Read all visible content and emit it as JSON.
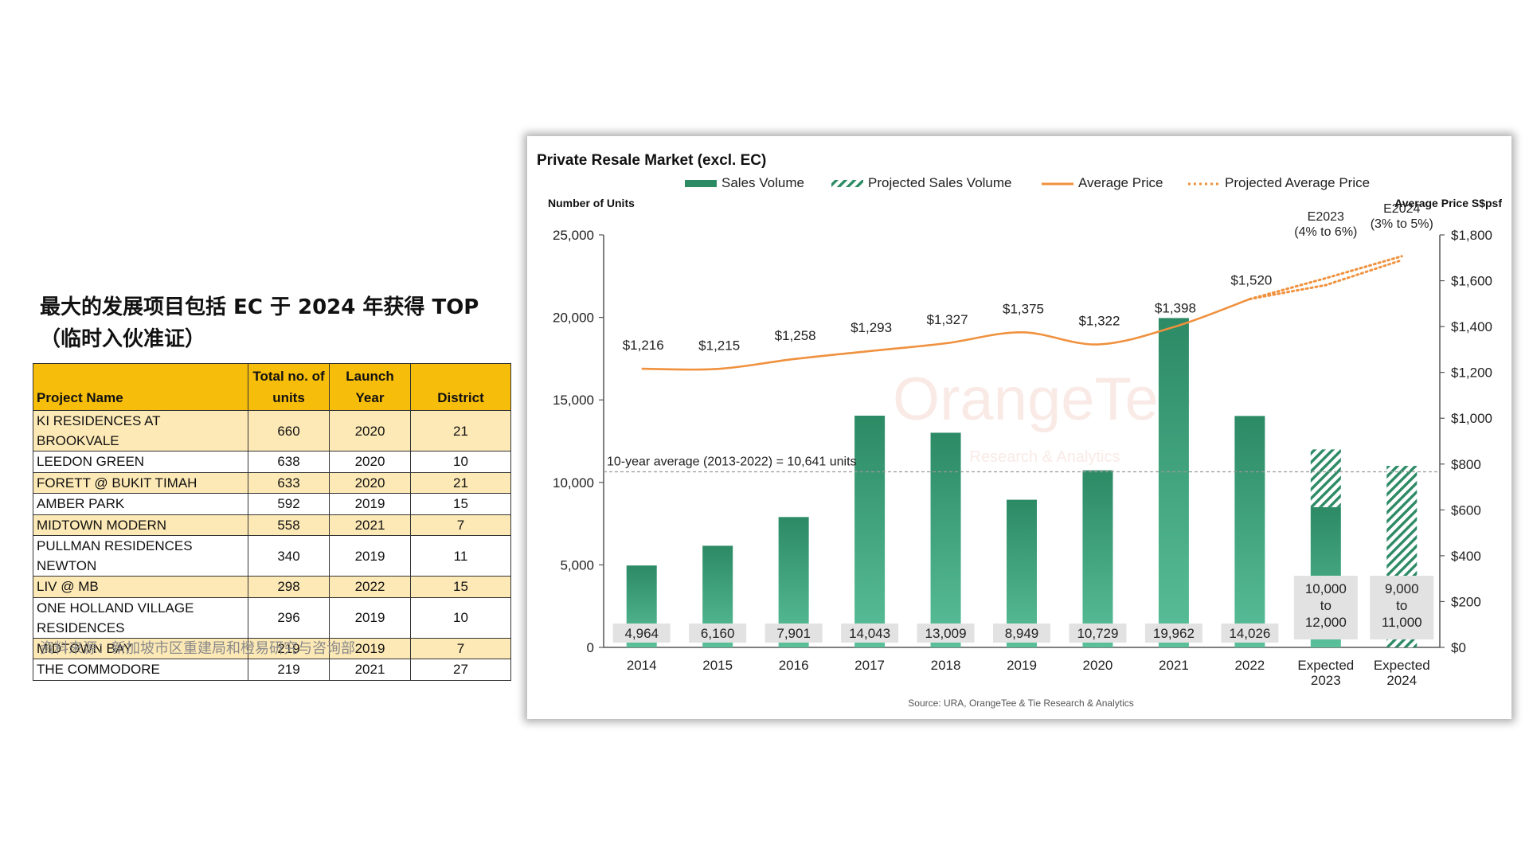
{
  "heading": "最大的发展项目包括 EC 于 2024 年获得 TOP（临时入伙准证）",
  "table": {
    "headers": [
      "Project Name",
      "Total no. of units",
      "Launch Year",
      "District"
    ],
    "rows": [
      [
        "KI RESIDENCES AT BROOKVALE",
        "660",
        "2020",
        "21"
      ],
      [
        "LEEDON GREEN",
        "638",
        "2020",
        "10"
      ],
      [
        "FORETT @ BUKIT TIMAH",
        "633",
        "2020",
        "21"
      ],
      [
        "AMBER PARK",
        "592",
        "2019",
        "15"
      ],
      [
        "MIDTOWN MODERN",
        "558",
        "2021",
        "7"
      ],
      [
        "PULLMAN RESIDENCES NEWTON",
        "340",
        "2019",
        "11"
      ],
      [
        "LIV @ MB",
        "298",
        "2022",
        "15"
      ],
      [
        "ONE HOLLAND VILLAGE RESIDENCES",
        "296",
        "2019",
        "10"
      ],
      [
        "MIDTOWN BAY",
        "219",
        "2019",
        "7"
      ],
      [
        "THE COMMODORE",
        "219",
        "2021",
        "27"
      ]
    ],
    "colors": {
      "header": "#f7bd0b",
      "odd_row": "#fde9b6",
      "even_row": "#ffffff"
    }
  },
  "source_cn": "资料来源：新加坡市区重建局和橙易研究与咨询部",
  "chart_data": {
    "type": "bar",
    "title": "Private Resale Market (excl. EC)",
    "ylabel_left": "Number of Units",
    "ylabel_right": "Average Price S$psf",
    "categories": [
      "2014",
      "2015",
      "2016",
      "2017",
      "2018",
      "2019",
      "2020",
      "2021",
      "2022",
      "Expected 2023",
      "Expected 2024"
    ],
    "y_left": {
      "range": [
        0,
        25000
      ],
      "ticks": [
        "0",
        "5,000",
        "10,000",
        "15,000",
        "20,000",
        "25,000"
      ]
    },
    "y_right": {
      "range": [
        0,
        1800
      ],
      "ticks": [
        "$0",
        "$200",
        "$400",
        "$600",
        "$800",
        "$1,000",
        "$1,200",
        "$1,400",
        "$1,600",
        "$1,800"
      ]
    },
    "legend": [
      "Sales Volume",
      "Projected Sales Volume",
      "Average Price",
      "Projected Average Price"
    ],
    "legend_position": "top",
    "series": [
      {
        "name": "Sales Volume",
        "type": "bar",
        "axis": "left",
        "values": [
          4964,
          6160,
          7901,
          14043,
          13009,
          8949,
          10729,
          19962,
          14026,
          8500,
          null
        ],
        "labels": [
          "4,964",
          "6,160",
          "7,901",
          "14,043",
          "13,009",
          "8,949",
          "10,729",
          "19,962",
          "14,026",
          "",
          ""
        ]
      },
      {
        "name": "Projected Sales Volume",
        "type": "bar",
        "axis": "left",
        "pattern": "hatched",
        "values": [
          null,
          null,
          null,
          null,
          null,
          null,
          null,
          null,
          null,
          [
            10000,
            12000
          ],
          [
            9000,
            11000
          ]
        ],
        "labels": [
          "",
          "",
          "",
          "",
          "",
          "",
          "",
          "",
          "",
          "10,000 to 12,000",
          "9,000 to 11,000"
        ]
      },
      {
        "name": "Average Price",
        "type": "line",
        "axis": "right",
        "values": [
          1216,
          1215,
          1258,
          1293,
          1327,
          1375,
          1322,
          1398,
          1520,
          null,
          null
        ],
        "labels": [
          "$1,216",
          "$1,215",
          "$1,258",
          "$1,293",
          "$1,327",
          "$1,375",
          "$1,322",
          "$1,398",
          "$1,520",
          "",
          ""
        ]
      },
      {
        "name": "Projected Average Price",
        "type": "line",
        "axis": "right",
        "style": "dotted",
        "range_values": [
          [
            1520,
            1581,
            1690
          ],
          [
            1520,
            1611,
            1707
          ]
        ],
        "labels": [
          "E2023 (4% to 6%)",
          "E2024 (3% to 5%)"
        ]
      }
    ],
    "reference_line": {
      "value": 10641,
      "label": "10-year average (2013-2022) = 10,641 units"
    },
    "watermark": {
      "name": "OrangeTee",
      "sub": "Research & Analytics"
    },
    "source": "Source: URA, OrangeTee & Tie Research & Analytics",
    "colors": {
      "bar_top": "#2c8a65",
      "bar_bottom": "#5ac09a",
      "line": "#f0913e",
      "label_bg": "#e2e2e2",
      "axis": "#555555"
    }
  }
}
